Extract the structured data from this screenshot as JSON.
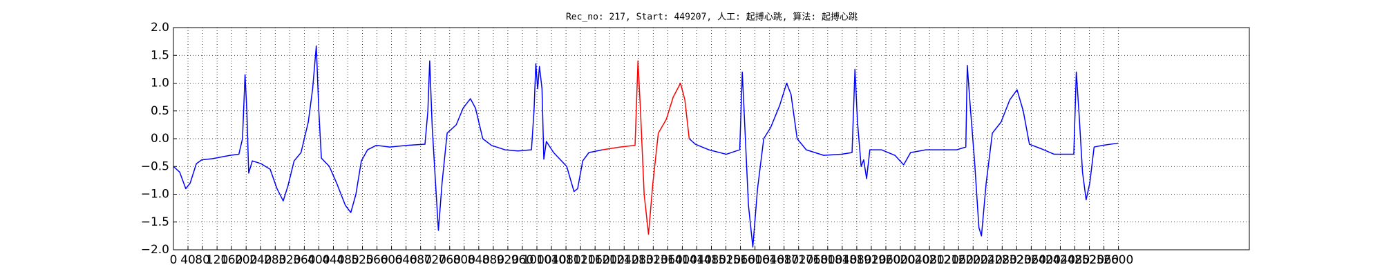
{
  "chart_data": {
    "type": "line",
    "title": "Rec_no: 217, Start: 449207, 人工: 起搏心跳, 算法: 起搏心跳",
    "x": [
      0,
      17,
      34,
      46,
      63,
      78,
      107,
      156,
      180,
      190,
      197,
      202,
      207,
      217,
      241,
      266,
      285,
      302,
      315,
      332,
      351,
      371,
      383,
      393,
      400,
      407,
      429,
      449,
      473,
      488,
      502,
      517,
      534,
      558,
      595,
      644,
      692,
      700,
      705,
      712,
      722,
      729,
      739,
      753,
      778,
      797,
      817,
      831,
      851,
      875,
      912,
      948,
      985,
      992,
      997,
      1002,
      1007,
      1014,
      1019,
      1026,
      1046,
      1082,
      1102,
      1112,
      1126,
      1143,
      1180,
      1229,
      1270,
      1278,
      1285,
      1295,
      1307,
      1319,
      1334,
      1356,
      1375,
      1395,
      1407,
      1419,
      1436,
      1473,
      1521,
      1558,
      1565,
      1570,
      1582,
      1594,
      1607,
      1624,
      1643,
      1668,
      1687,
      1699,
      1716,
      1741,
      1789,
      1838,
      1867,
      1875,
      1882,
      1892,
      1899,
      1907,
      1916,
      1948,
      1985,
      2009,
      2028,
      2070,
      2106,
      2155,
      2180,
      2184,
      2192,
      2204,
      2216,
      2223,
      2236,
      2253,
      2277,
      2301,
      2321,
      2338,
      2355,
      2387,
      2423,
      2477,
      2484,
      2492,
      2501,
      2511,
      2521,
      2533,
      2557,
      2599
    ],
    "series": [
      {
        "color": "#0000ff",
        "values": [
          -0.5,
          -0.6,
          -0.9,
          -0.8,
          -0.45,
          -0.38,
          -0.36,
          -0.3,
          -0.28,
          0.0,
          1.15,
          0.5,
          -0.62,
          -0.4,
          -0.45,
          -0.55,
          -0.9,
          -1.12,
          -0.85,
          -0.4,
          -0.25,
          0.3,
          0.9,
          1.67,
          0.5,
          -0.35,
          -0.5,
          -0.8,
          -1.2,
          -1.33,
          -1.0,
          -0.4,
          -0.2,
          -0.12,
          -0.15,
          -0.12,
          -0.1,
          0.5,
          1.4,
          0.2,
          -0.9,
          -1.65,
          -0.8,
          0.1,
          0.25,
          0.55,
          0.72,
          0.55,
          0.0,
          -0.12,
          -0.2,
          -0.22,
          -0.2,
          0.5,
          1.35,
          0.9,
          1.3,
          0.9,
          -0.37,
          -0.05,
          -0.25,
          -0.5,
          -0.95,
          -0.9,
          -0.4,
          -0.25,
          -0.2,
          null,
          null,
          null,
          null,
          null,
          null,
          null,
          null,
          null,
          null,
          null,
          null,
          0.0,
          -0.1,
          -0.2,
          -0.28,
          -0.2,
          1.2,
          0.5,
          -1.2,
          -1.95,
          -0.9,
          0.0,
          0.2,
          0.6,
          1.0,
          0.8,
          0.0,
          -0.2,
          -0.3,
          -0.28,
          -0.25,
          1.25,
          0.3,
          -0.5,
          -0.38,
          -0.72,
          -0.2,
          -0.2,
          -0.3,
          -0.47,
          -0.25,
          -0.2,
          -0.2,
          -0.2,
          -0.15,
          1.32,
          0.6,
          -0.4,
          -1.6,
          -1.75,
          -0.8,
          0.1,
          0.3,
          0.7,
          0.88,
          0.5,
          -0.1,
          -0.18,
          -0.28,
          -0.28,
          1.2,
          0.4,
          -0.6,
          -1.1,
          -0.8,
          -0.15,
          -0.12,
          -0.08
        ]
      },
      {
        "color": "#ff0000",
        "values": [
          null,
          null,
          null,
          null,
          null,
          null,
          null,
          null,
          null,
          null,
          null,
          null,
          null,
          null,
          null,
          null,
          null,
          null,
          null,
          null,
          null,
          null,
          null,
          null,
          null,
          null,
          null,
          null,
          null,
          null,
          null,
          null,
          null,
          null,
          null,
          null,
          null,
          null,
          null,
          null,
          null,
          null,
          null,
          null,
          null,
          null,
          null,
          null,
          null,
          null,
          null,
          null,
          null,
          null,
          null,
          null,
          null,
          null,
          null,
          null,
          null,
          null,
          null,
          null,
          null,
          null,
          -0.2,
          -0.15,
          -0.12,
          1.4,
          0.5,
          -1.0,
          -1.72,
          -0.8,
          0.1,
          0.35,
          0.75,
          1.0,
          0.7,
          0.0,
          null,
          null,
          null,
          null,
          null,
          null,
          null,
          null,
          null,
          null,
          null,
          null,
          null,
          null,
          null,
          null,
          null,
          null,
          null,
          null,
          null,
          null,
          null,
          null,
          null,
          null,
          null,
          null,
          null,
          null,
          null,
          null,
          null,
          null,
          null,
          null,
          null,
          null,
          null,
          null,
          null,
          null,
          null,
          null,
          null,
          null,
          null,
          null,
          null,
          null,
          null,
          null,
          null,
          null,
          null,
          null
        ]
      }
    ],
    "xlim": [
      0,
      2960
    ],
    "xticks": [
      0,
      40,
      80,
      120,
      160,
      200,
      240,
      280,
      320,
      360,
      400,
      440,
      480,
      520,
      560,
      600,
      640,
      680,
      720,
      760,
      800,
      840,
      880,
      920,
      960,
      1000,
      1040,
      1080,
      1120,
      1160,
      1200,
      1240,
      1280,
      1320,
      1360,
      1400,
      1440,
      1480,
      1520,
      1560,
      1600,
      1640,
      1680,
      1720,
      1760,
      1800,
      1840,
      1880,
      1920,
      1960,
      2000,
      2040,
      2080,
      2120,
      2160,
      2200,
      2240,
      2280,
      2320,
      2360,
      2400,
      2440,
      2480,
      2520,
      2560,
      2600
    ],
    "ylim": [
      -2.0,
      2.0
    ],
    "yticks": [
      {
        "value": -2,
        "label": "−2.0"
      },
      {
        "value": -1.5,
        "label": "−1.5"
      },
      {
        "value": -1,
        "label": "−1.0"
      },
      {
        "value": -0.5,
        "label": "−0.5"
      },
      {
        "value": 0,
        "label": "0.0"
      },
      {
        "value": 0.5,
        "label": "0.5"
      },
      {
        "value": 1,
        "label": "1.0"
      },
      {
        "value": 1.5,
        "label": "1.5"
      },
      {
        "value": 2,
        "label": "2.0"
      }
    ],
    "grid": true
  }
}
